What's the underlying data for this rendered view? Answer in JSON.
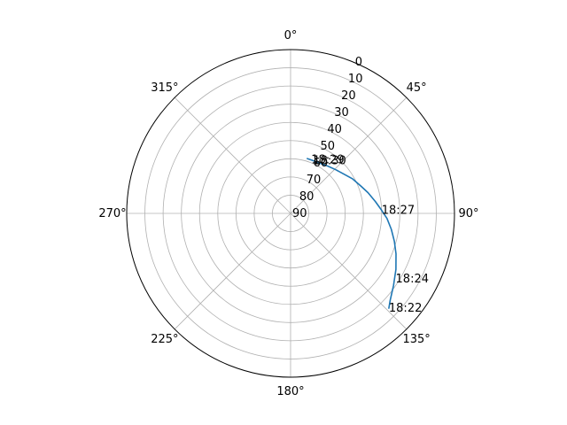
{
  "chart_data": {
    "type": "line",
    "projection": "polar",
    "theta_zero_location": "N",
    "theta_direction": "clockwise",
    "radial_axis_inverted": true,
    "rlim": [
      90,
      0
    ],
    "radial_ticks": [
      0,
      10,
      20,
      30,
      40,
      50,
      60,
      70,
      80,
      90
    ],
    "radial_tick_labels": [
      "0",
      "10",
      "20",
      "30",
      "40",
      "50",
      "60",
      "70",
      "80",
      "90"
    ],
    "angular_ticks_deg": [
      0,
      45,
      90,
      135,
      180,
      225,
      270,
      315
    ],
    "angular_tick_labels": [
      "0°",
      "45°",
      "90°",
      "135°",
      "180°",
      "225°",
      "270°",
      "315°"
    ],
    "grid": true,
    "series": [
      {
        "color": "#1f77b4",
        "azimuth_deg": [
          134,
          131,
          125,
          118,
          111,
          105,
          99,
          93,
          88,
          82,
          75,
          69,
          61,
          54,
          46,
          38,
          31,
          23,
          17
        ],
        "elevation_deg": [
          15,
          17.5,
          21,
          24.5,
          28,
          31,
          34,
          37,
          40,
          43,
          46,
          48.5,
          51,
          53.5,
          55.5,
          57,
          58,
          58.5,
          58.5
        ]
      }
    ],
    "annotations": [
      {
        "text": "18:22",
        "azimuth_deg": 134,
        "elevation_deg": 15
      },
      {
        "text": "18:24",
        "azimuth_deg": 122,
        "elevation_deg": 22
      },
      {
        "text": "18:27",
        "azimuth_deg": 88,
        "elevation_deg": 40
      },
      {
        "text": "18:29",
        "azimuth_deg": 21,
        "elevation_deg": 58.5
      },
      {
        "text": "18:30",
        "azimuth_deg": 23,
        "elevation_deg": 58.5
      }
    ]
  }
}
